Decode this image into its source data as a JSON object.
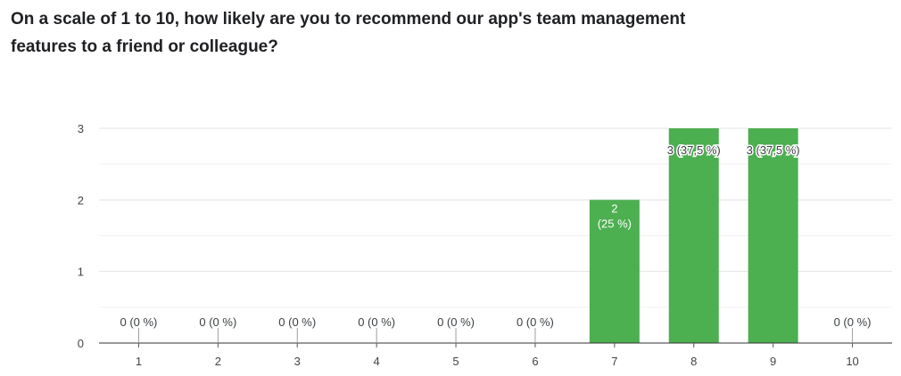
{
  "question": "On a scale of 1 to 10, how likely are you to recommend our app's team management features to a friend or colleague?",
  "colors": {
    "bar": "#4caf50",
    "grid": "#e6e6e6",
    "axis": "#333333",
    "label_outside": "#3c4043",
    "label_inside": "#ffffff"
  },
  "chart_data": {
    "type": "bar",
    "title": "",
    "xlabel": "",
    "ylabel": "",
    "categories": [
      "1",
      "2",
      "3",
      "4",
      "5",
      "6",
      "7",
      "8",
      "9",
      "10"
    ],
    "values": [
      0,
      0,
      0,
      0,
      0,
      0,
      2,
      3,
      3,
      0
    ],
    "data_labels": [
      "0 (0 %)",
      "0 (0 %)",
      "0 (0 %)",
      "0 (0 %)",
      "0 (0 %)",
      "0 (0 %)",
      "2\n(25 %)",
      "3 (37,5 %)",
      "3 (37,5 %)",
      "0 (0 %)"
    ],
    "ylim": [
      0,
      3
    ],
    "yticks": [
      0,
      1,
      2,
      3
    ],
    "grid": true,
    "legend": "none"
  }
}
